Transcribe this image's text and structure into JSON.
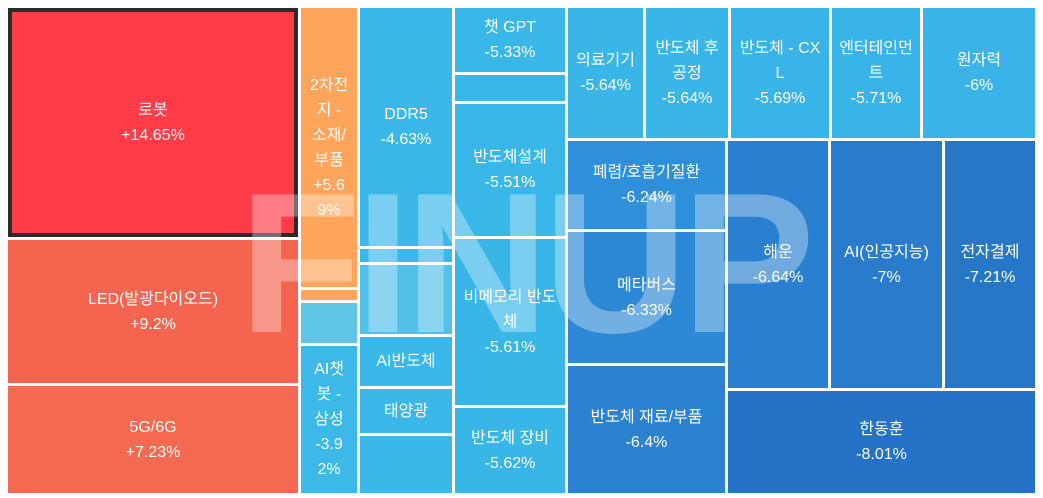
{
  "watermark": "FINUP",
  "colors": {
    "background": "#FFFFFF",
    "text": "#FFFFFF",
    "selected_border": "#2B2B2B"
  },
  "chart_data": {
    "type": "heatmap",
    "tiles": [
      {
        "label": "로봇",
        "value": "+14.65%",
        "change": 14.65,
        "color": "#FF3C48",
        "selected": true
      },
      {
        "label": "LED(발광다이오드)",
        "value": "+9.2%",
        "change": 9.2,
        "color": "#F4644F"
      },
      {
        "label": "5G/6G",
        "value": "+7.23%",
        "change": 7.23,
        "color": "#F4694F"
      },
      {
        "label": "2차전지 - 소재/부품",
        "value": "+5.69%",
        "change": 5.69,
        "color": "#FFA45B"
      },
      {
        "color": "#FFA65E"
      },
      {
        "color": "#5EC5E5"
      },
      {
        "label": "AI챗봇 - 삼성",
        "value": "-3.92%",
        "change": -3.92,
        "color": "#3CB9E9"
      },
      {
        "label": "DDR5",
        "value": "-4.63%",
        "change": -4.63,
        "color": "#3AB8E9"
      },
      {
        "color": "#3AB8E9"
      },
      {
        "color": "#52C1EA"
      },
      {
        "label": "AI반도체",
        "color": "#3AB8E9"
      },
      {
        "label": "태양광",
        "color": "#3AB8E9"
      },
      {
        "color": "#3AB8E9"
      },
      {
        "label": "챗 GPT",
        "value": "-5.33%",
        "change": -5.33,
        "color": "#3AB7E9"
      },
      {
        "color": "#3AB7E9"
      },
      {
        "label": "반도체설계",
        "value": "-5.51%",
        "change": -5.51,
        "color": "#3AB7E9"
      },
      {
        "label": "비메모리 반도체",
        "value": "-5.61%",
        "change": -5.61,
        "color": "#39B6E8"
      },
      {
        "label": "반도체 장비",
        "value": "-5.62%",
        "change": -5.62,
        "color": "#39B6E8"
      },
      {
        "label": "의료기기",
        "value": "-5.64%",
        "change": -5.64,
        "color": "#39B5E8"
      },
      {
        "label": "반도체 후공정",
        "value": "-5.64%",
        "change": -5.64,
        "color": "#39B5E8"
      },
      {
        "label": "반도체 - CXL",
        "value": "-5.69%",
        "change": -5.69,
        "color": "#39B4E8"
      },
      {
        "label": "엔터테인먼트",
        "value": "-5.71%",
        "change": -5.71,
        "color": "#39B4E8"
      },
      {
        "label": "원자력",
        "value": "-6%",
        "change": -6,
        "color": "#39B3E8"
      },
      {
        "label": "폐렴/호흡기질환",
        "value": "-6.24%",
        "change": -6.24,
        "color": "#2E8FDA"
      },
      {
        "label": "메타버스",
        "value": "-6.33%",
        "change": -6.33,
        "color": "#2D89D6"
      },
      {
        "label": "반도체 재료/부품",
        "value": "-6.4%",
        "change": -6.4,
        "color": "#2A82D1"
      },
      {
        "label": "해운",
        "value": "-6.64%",
        "change": -6.64,
        "color": "#2A80D0"
      },
      {
        "label": "AI(인공지능)",
        "value": "-7%",
        "change": -7,
        "color": "#297BCC"
      },
      {
        "label": "전자결제",
        "value": "-7.21%",
        "change": -7.21,
        "color": "#2777C9"
      },
      {
        "label": "한동훈",
        "value": "-8.01%",
        "change": -8.01,
        "color": "#2572C6"
      }
    ]
  }
}
